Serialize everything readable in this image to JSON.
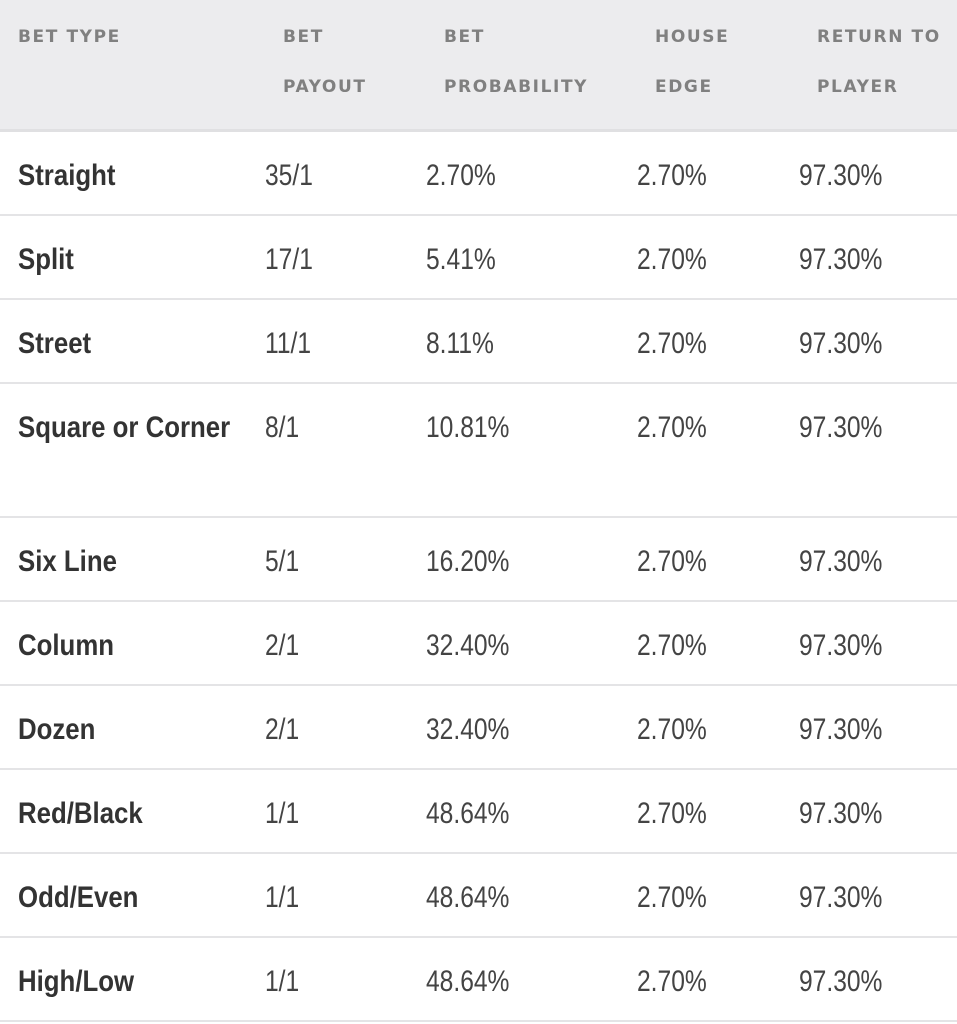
{
  "table": {
    "headers": [
      {
        "line1": "BET TYPE",
        "line2": ""
      },
      {
        "line1": "BET",
        "line2": "PAYOUT"
      },
      {
        "line1": "BET",
        "line2": "PROBABILITY"
      },
      {
        "line1": "HOUSE",
        "line2": "EDGE"
      },
      {
        "line1": "RETURN TO",
        "line2": "PLAYER"
      }
    ],
    "rows": [
      {
        "bet_type": "Straight",
        "payout": "35/1",
        "probability": "2.70%",
        "house_edge": "2.70%",
        "rtp": "97.30%"
      },
      {
        "bet_type": "Split",
        "payout": "17/1",
        "probability": "5.41%",
        "house_edge": "2.70%",
        "rtp": "97.30%"
      },
      {
        "bet_type": "Street",
        "payout": "11/1",
        "probability": "8.11%",
        "house_edge": "2.70%",
        "rtp": "97.30%"
      },
      {
        "bet_type": "Square or Corner",
        "payout": "8/1",
        "probability": "10.81%",
        "house_edge": "2.70%",
        "rtp": "97.30%"
      },
      {
        "bet_type": "Six Line",
        "payout": "5/1",
        "probability": "16.20%",
        "house_edge": "2.70%",
        "rtp": "97.30%"
      },
      {
        "bet_type": "Column",
        "payout": "2/1",
        "probability": "32.40%",
        "house_edge": "2.70%",
        "rtp": "97.30%"
      },
      {
        "bet_type": "Dozen",
        "payout": "2/1",
        "probability": "32.40%",
        "house_edge": "2.70%",
        "rtp": "97.30%"
      },
      {
        "bet_type": "Red/Black",
        "payout": "1/1",
        "probability": "48.64%",
        "house_edge": "2.70%",
        "rtp": "97.30%"
      },
      {
        "bet_type": "Odd/Even",
        "payout": "1/1",
        "probability": "48.64%",
        "house_edge": "2.70%",
        "rtp": "97.30%"
      },
      {
        "bet_type": "High/Low",
        "payout": "1/1",
        "probability": "48.64%",
        "house_edge": "2.70%",
        "rtp": "97.30%"
      }
    ]
  },
  "colors": {
    "header_bg": "#ececee",
    "header_text": "#808080",
    "body_text": "#3c3c3c",
    "row_border": "#e4e4e6"
  }
}
